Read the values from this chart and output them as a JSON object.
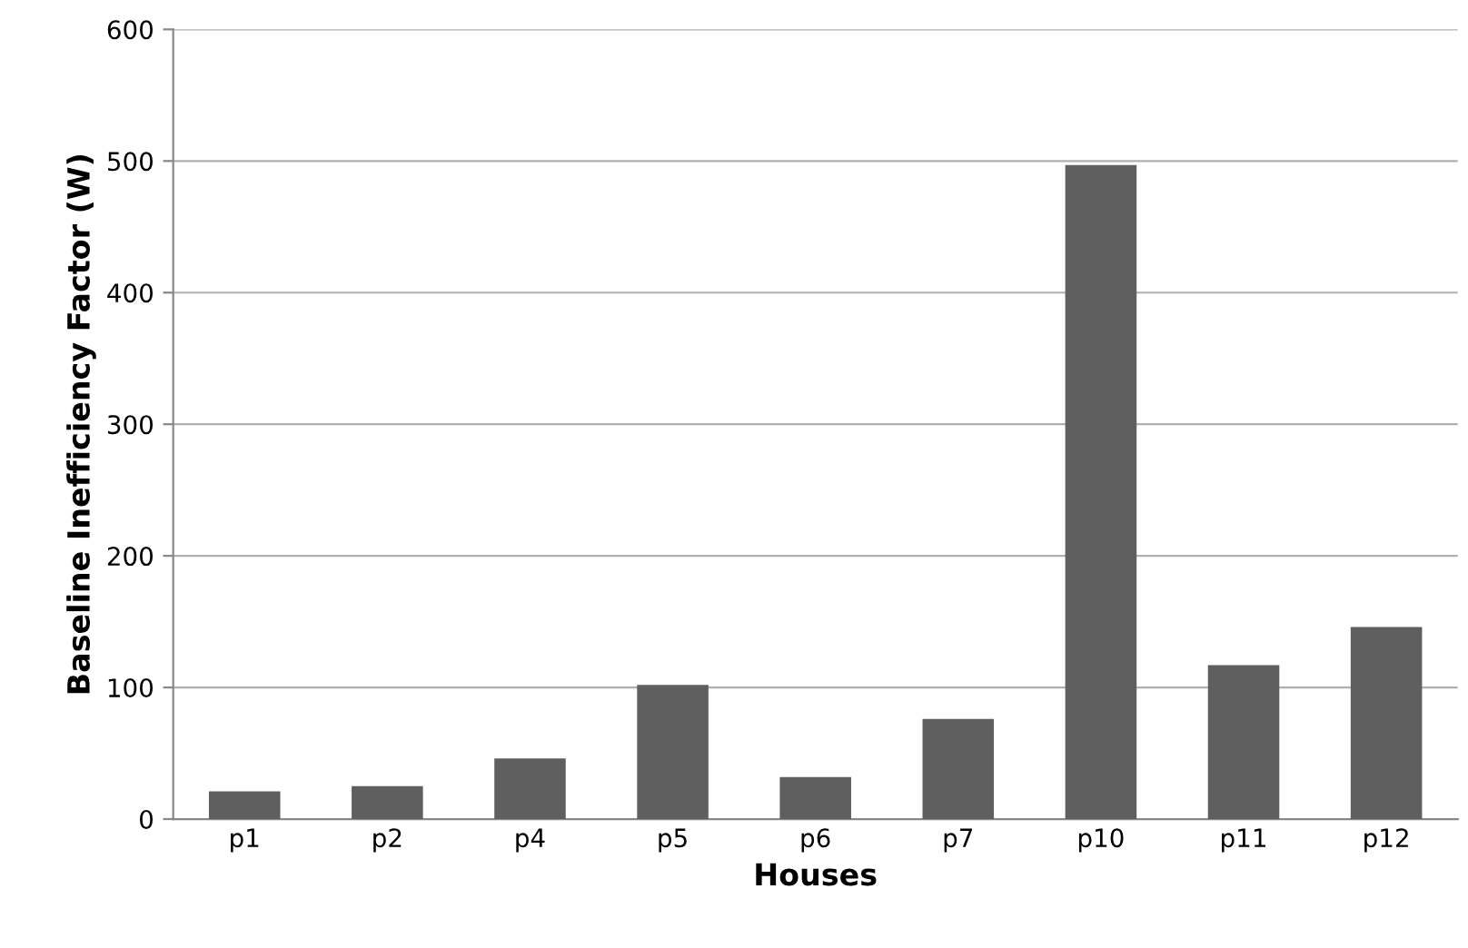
{
  "chart_data": {
    "type": "bar",
    "xlabel": "Houses",
    "ylabel": "Baseline Inefficiency Factor (W)",
    "categories": [
      "p1",
      "p2",
      "p4",
      "p5",
      "p6",
      "p7",
      "p10",
      "p11",
      "p12"
    ],
    "values": [
      21,
      25,
      46,
      102,
      32,
      76,
      497,
      117,
      146
    ],
    "color": "#5f5f5f",
    "ylim": [
      0,
      600
    ],
    "yticks": [
      0,
      100,
      200,
      300,
      400,
      500,
      600
    ],
    "grid": "y",
    "legend": false
  }
}
